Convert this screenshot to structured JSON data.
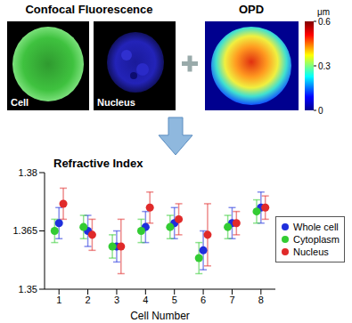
{
  "chart_data": {
    "type": "scatter",
    "title": "Refractive Index",
    "x_label": "Cell Number",
    "x": [
      1,
      2,
      3,
      4,
      5,
      6,
      7,
      8
    ],
    "xlim": [
      0.5,
      8.5
    ],
    "xticks": [
      1,
      2,
      3,
      4,
      5,
      6,
      7,
      8
    ],
    "ylim": [
      1.35,
      1.38
    ],
    "yticks": [
      1.35,
      1.365,
      1.38
    ],
    "legend": "right",
    "marker": "circle",
    "series": [
      {
        "name": "Whole cell",
        "color": "#1f2fdc",
        "values": [
          1.367,
          1.365,
          1.361,
          1.366,
          1.367,
          1.36,
          1.367,
          1.371
        ],
        "errors": [
          0.004,
          0.004,
          0.004,
          0.004,
          0.004,
          0.005,
          0.004,
          0.004
        ]
      },
      {
        "name": "Cytoplasm",
        "color": "#33cc33",
        "values": [
          1.365,
          1.366,
          1.361,
          1.365,
          1.366,
          1.358,
          1.366,
          1.37
        ],
        "errors": [
          0.003,
          0.003,
          0.003,
          0.003,
          0.003,
          0.004,
          0.003,
          0.003
        ]
      },
      {
        "name": "Nucleus",
        "color": "#e02a2a",
        "values": [
          1.372,
          1.364,
          1.361,
          1.371,
          1.368,
          1.364,
          1.367,
          1.371
        ],
        "errors": [
          0.004,
          0.004,
          0.007,
          0.004,
          0.004,
          0.008,
          0.003,
          0.003
        ]
      }
    ]
  },
  "figure": {
    "header": "Confocal Fluorescence",
    "images": [
      {
        "label": "Cell"
      },
      {
        "label": "Nucleus"
      }
    ],
    "opd": {
      "title": "OPD",
      "unit": "μm",
      "colorbar_range": [
        0,
        0.6
      ],
      "colorbar_ticks": [
        0,
        0.3,
        0.6
      ]
    }
  }
}
